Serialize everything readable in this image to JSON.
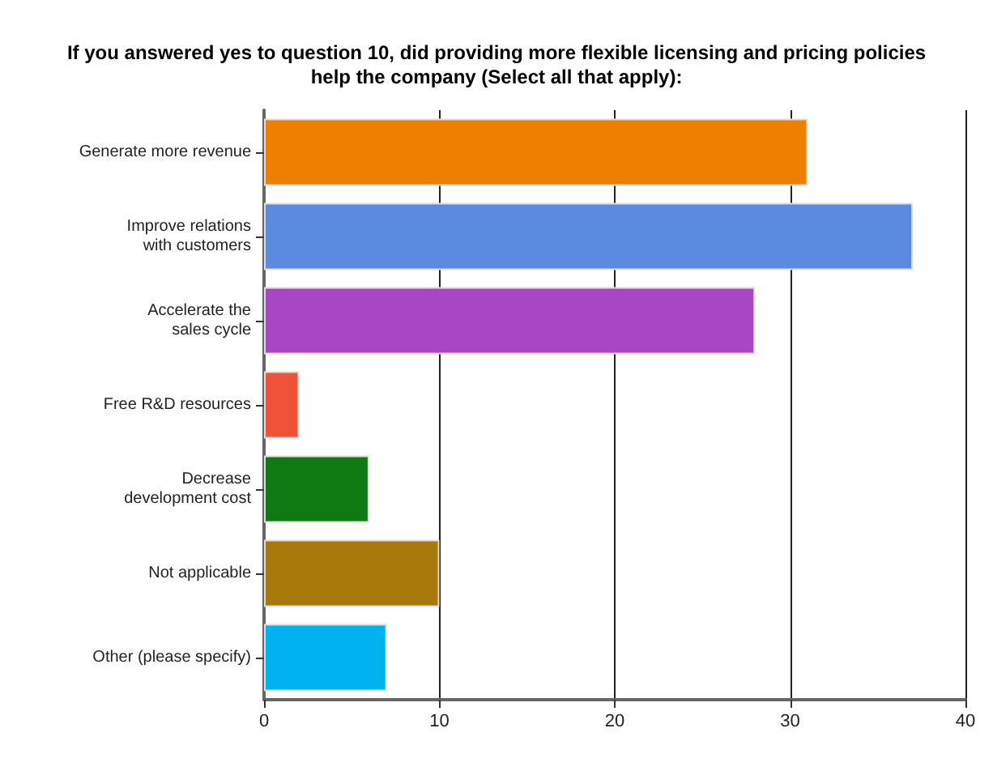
{
  "chart_data": {
    "type": "bar",
    "orientation": "horizontal",
    "title": "If you answered yes to question 10, did providing more flexible licensing and pricing policies\nhelp the company (Select all that apply):",
    "categories": [
      "Generate more revenue",
      "Improve relations\nwith customers",
      "Accelerate the\nsales cycle",
      "Free R&D resources",
      "Decrease\ndevelopment cost",
      "Not applicable",
      "Other (please specify)"
    ],
    "values": [
      31,
      37,
      28,
      2,
      6,
      10,
      7
    ],
    "colors": [
      "#ef7f00",
      "#5b8be0",
      "#a946c4",
      "#ef5238",
      "#0f7a12",
      "#a8780a",
      "#00b2ef"
    ],
    "xlim": [
      0,
      40
    ],
    "xticks": [
      0,
      10,
      20,
      30,
      40
    ],
    "grid": "x"
  }
}
